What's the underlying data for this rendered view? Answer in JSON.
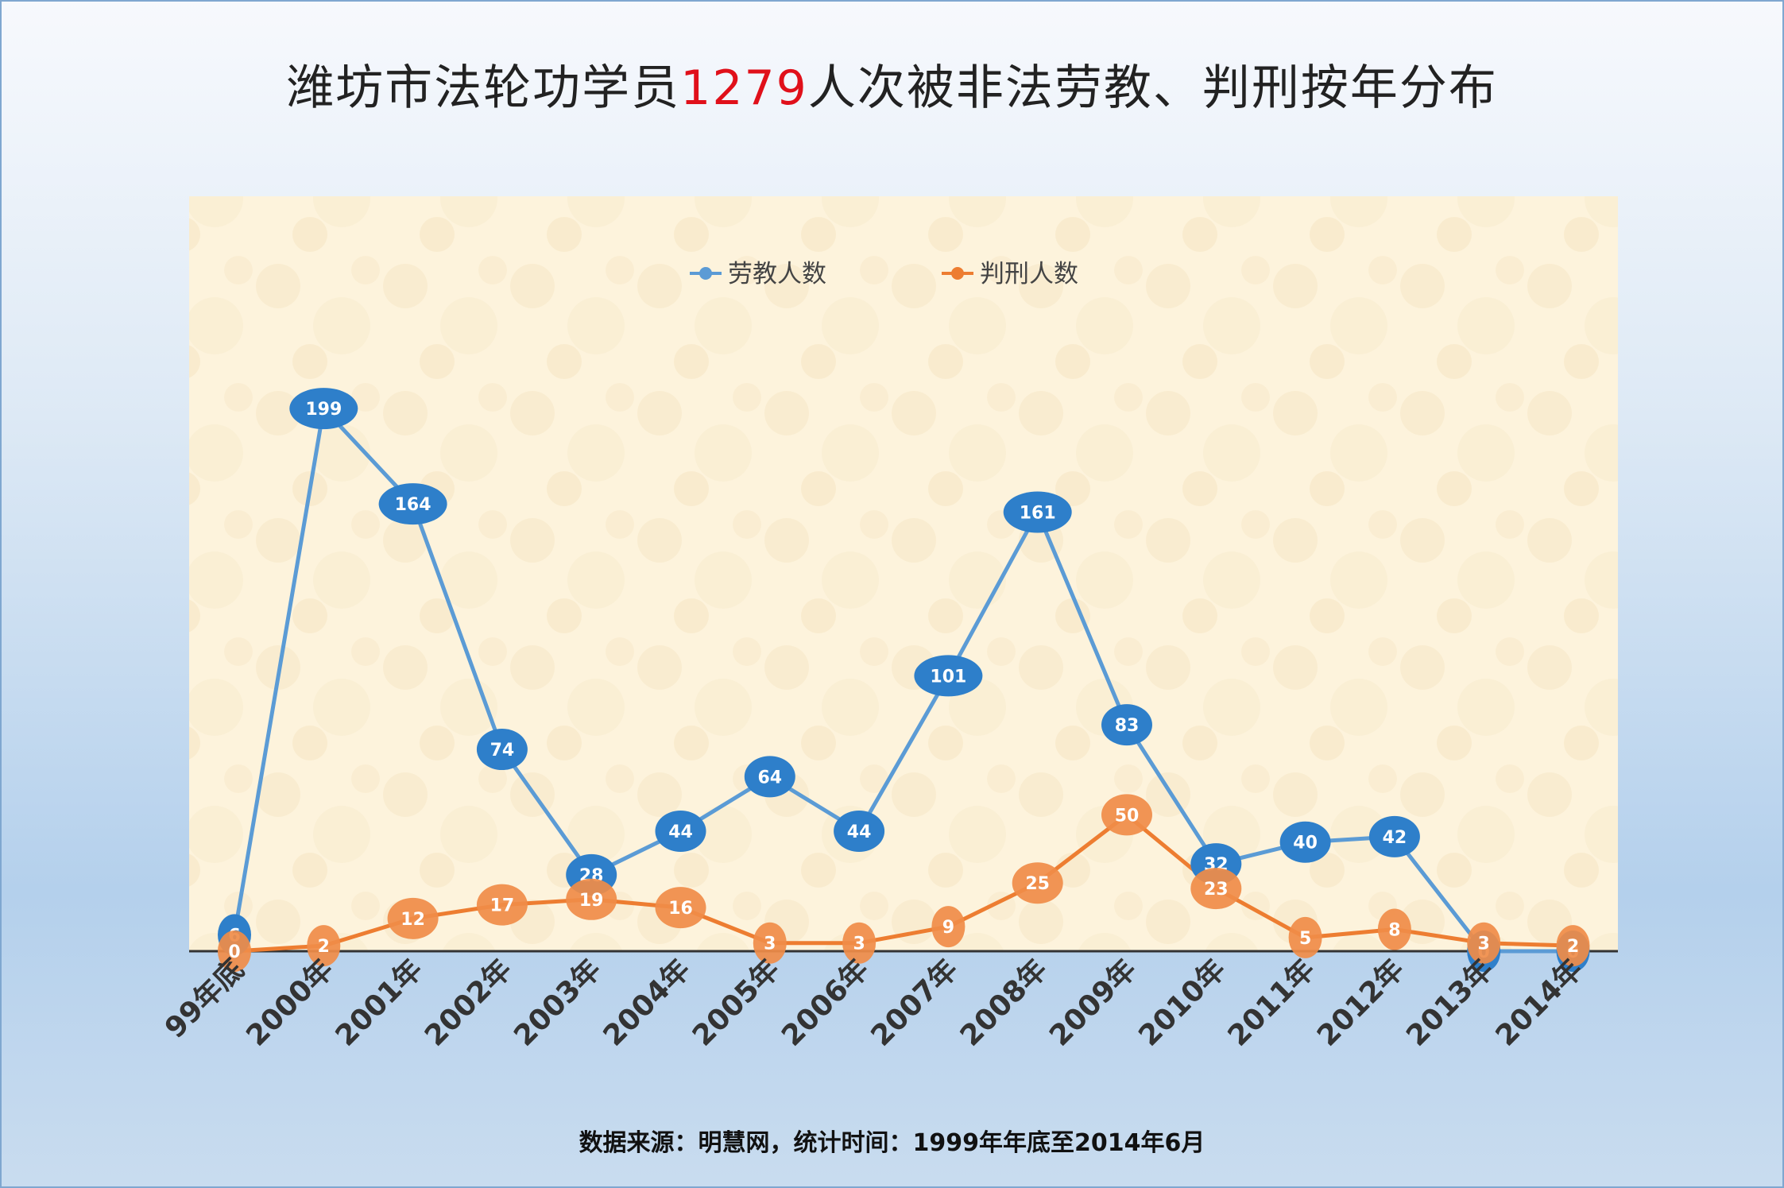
{
  "title": {
    "prefix": "潍坊市法轮功学员",
    "highlight": "1279",
    "suffix": "人次被非法劳教、判刑按年分布"
  },
  "footnote": "数据来源：明慧网，统计时间：1999年年底至2014年6月",
  "colors": {
    "series_labor": "#5b9bd5",
    "series_labor_marker": "#2e7fca",
    "series_sentence": "#ed7d31",
    "series_sentence_marker": "#f08c48",
    "plot_background": "#fdf3dc",
    "title_highlight": "#e0101a"
  },
  "chart_data": {
    "type": "line",
    "title": "潍坊市法轮功学员1279人次被非法劳教、判刑按年分布",
    "legend_position": "top-center",
    "grid": false,
    "ylim": [
      0,
      220
    ],
    "categories": [
      "99年底",
      "2000年",
      "2001年",
      "2002年",
      "2003年",
      "2004年",
      "2005年",
      "2006年",
      "2007年",
      "2008年",
      "2009年",
      "2010年",
      "2011年",
      "2012年",
      "2013年",
      "2014年"
    ],
    "series": [
      {
        "name": "劳教人数",
        "values": [
          6,
          199,
          164,
          74,
          28,
          44,
          64,
          44,
          101,
          161,
          83,
          32,
          40,
          42,
          0,
          0
        ]
      },
      {
        "name": "判刑人数",
        "values": [
          0,
          2,
          12,
          17,
          19,
          16,
          3,
          3,
          9,
          25,
          50,
          23,
          5,
          8,
          3,
          2
        ]
      }
    ]
  }
}
